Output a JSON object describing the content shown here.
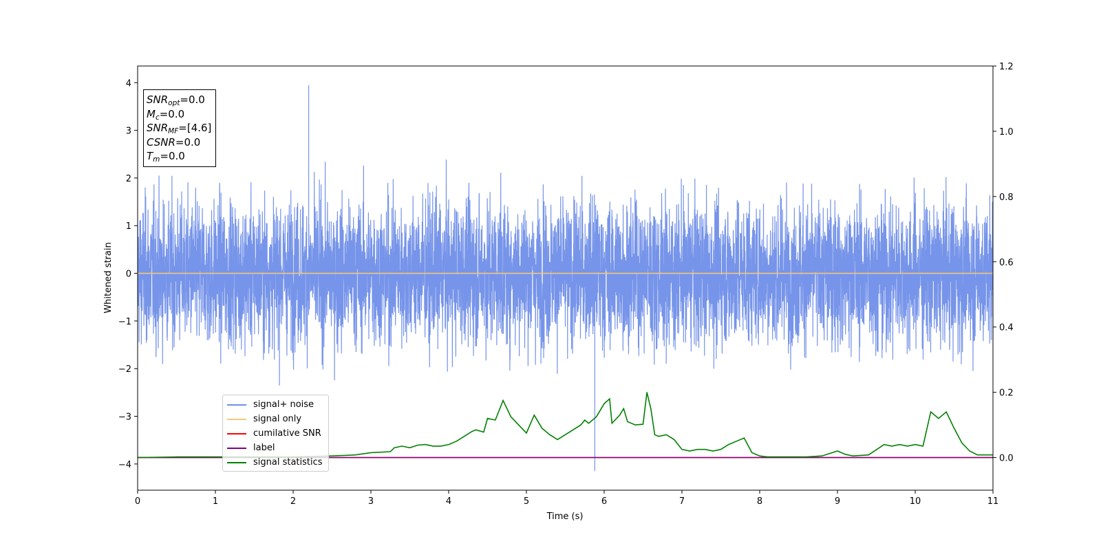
{
  "chart_data": {
    "type": "line",
    "title": "",
    "xlabel": "Time (s)",
    "ylabel": "Whitened strain",
    "xlim": [
      0,
      11
    ],
    "ylim": [
      -4.55,
      4.35
    ],
    "y2lim": [
      -0.1,
      1.2
    ],
    "x_ticks": [
      "0",
      "1",
      "2",
      "3",
      "4",
      "5",
      "6",
      "7",
      "8",
      "9",
      "10",
      "11"
    ],
    "y_ticks": [
      "4",
      "3",
      "2",
      "1",
      "0",
      "−1",
      "−2",
      "−3",
      "−4"
    ],
    "y2_ticks": [
      "1.2",
      "1.0",
      "0.8",
      "0.6",
      "0.4",
      "0.2",
      "0.0"
    ],
    "grid": false,
    "legend_position": "lower-left",
    "series": [
      {
        "name": "signal+ noise",
        "axis": "left",
        "color": "#6f8ee8",
        "description_values": "dense noise, 0–11 s, bulk within about ±1.6, extremes reaching about +3.95 near t=2.2 s and −4.15 near t=5.88 s",
        "approx_envelope": {
          "typical_max": 2.3,
          "typical_min": -2.3,
          "max": 3.95,
          "min": -4.15
        }
      },
      {
        "name": "signal only",
        "axis": "left",
        "color": "#f5c77a",
        "x": [
          0,
          11
        ],
        "y": [
          0,
          0
        ]
      },
      {
        "name": "cumilative SNR",
        "axis": "right",
        "color": "#ff0000",
        "x": [
          0,
          11
        ],
        "y": [
          0,
          0
        ]
      },
      {
        "name": "label",
        "axis": "right",
        "color": "#800080",
        "x": [
          0,
          11
        ],
        "y": [
          0,
          0
        ]
      },
      {
        "name": "signal statistics",
        "axis": "right",
        "color": "#008000",
        "x": [
          0,
          0.5,
          1.0,
          1.5,
          2.0,
          2.5,
          2.8,
          3.0,
          3.25,
          3.3,
          3.4,
          3.5,
          3.6,
          3.7,
          3.8,
          3.9,
          4.0,
          4.1,
          4.2,
          4.3,
          4.35,
          4.45,
          4.5,
          4.6,
          4.7,
          4.8,
          4.9,
          5.0,
          5.1,
          5.2,
          5.3,
          5.4,
          5.5,
          5.6,
          5.7,
          5.75,
          5.8,
          5.85,
          5.9,
          6.0,
          6.07,
          6.1,
          6.2,
          6.25,
          6.3,
          6.4,
          6.5,
          6.55,
          6.6,
          6.65,
          6.7,
          6.8,
          6.9,
          7.0,
          7.1,
          7.2,
          7.3,
          7.4,
          7.5,
          7.6,
          7.7,
          7.8,
          7.9,
          8.0,
          8.1,
          8.2,
          8.4,
          8.6,
          8.8,
          9.0,
          9.1,
          9.2,
          9.4,
          9.6,
          9.7,
          9.8,
          9.9,
          10.0,
          10.1,
          10.2,
          10.3,
          10.4,
          10.5,
          10.6,
          10.7,
          10.8,
          11.0
        ],
        "y": [
          0.0,
          0.002,
          0.002,
          0.002,
          0.002,
          0.005,
          0.008,
          0.015,
          0.018,
          0.03,
          0.035,
          0.03,
          0.038,
          0.04,
          0.035,
          0.035,
          0.04,
          0.05,
          0.065,
          0.08,
          0.085,
          0.078,
          0.12,
          0.115,
          0.175,
          0.125,
          0.1,
          0.075,
          0.13,
          0.09,
          0.07,
          0.055,
          0.07,
          0.085,
          0.1,
          0.115,
          0.105,
          0.115,
          0.125,
          0.165,
          0.18,
          0.105,
          0.13,
          0.15,
          0.11,
          0.1,
          0.102,
          0.2,
          0.15,
          0.07,
          0.065,
          0.07,
          0.055,
          0.025,
          0.02,
          0.025,
          0.025,
          0.02,
          0.025,
          0.04,
          0.05,
          0.06,
          0.015,
          0.005,
          0.002,
          0.002,
          0.002,
          0.002,
          0.005,
          0.02,
          0.01,
          0.005,
          0.008,
          0.04,
          0.035,
          0.04,
          0.035,
          0.04,
          0.035,
          0.14,
          0.12,
          0.14,
          0.09,
          0.045,
          0.02,
          0.008,
          0.008
        ]
      }
    ],
    "annotations": {
      "snr_opt": "0.0",
      "mc": "0.0",
      "snr_mf": "[4.6]",
      "csnr": "0.0",
      "tm": "0.0"
    }
  },
  "infobox": {
    "snr_opt_main": "SNR",
    "snr_opt_sub": "opt",
    "snr_opt_val": "=0.0",
    "mc_main": "M",
    "mc_sub": "c",
    "mc_val": "=0.0",
    "snr_mf_main": "SNR",
    "snr_mf_sub": "MF",
    "snr_mf_val": "=[4.6]",
    "csnr_main": "CSNR",
    "csnr_val": "=0.0",
    "tm_main": "T",
    "tm_sub": "m",
    "tm_val": "=0.0"
  },
  "legend": [
    {
      "label": "signal+ noise",
      "color": "#6f8ee8"
    },
    {
      "label": "signal only",
      "color": "#f5c77a"
    },
    {
      "label": "cumilative SNR",
      "color": "#ff0000"
    },
    {
      "label": "label",
      "color": "#800080"
    },
    {
      "label": "signal statistics",
      "color": "#008000"
    }
  ]
}
